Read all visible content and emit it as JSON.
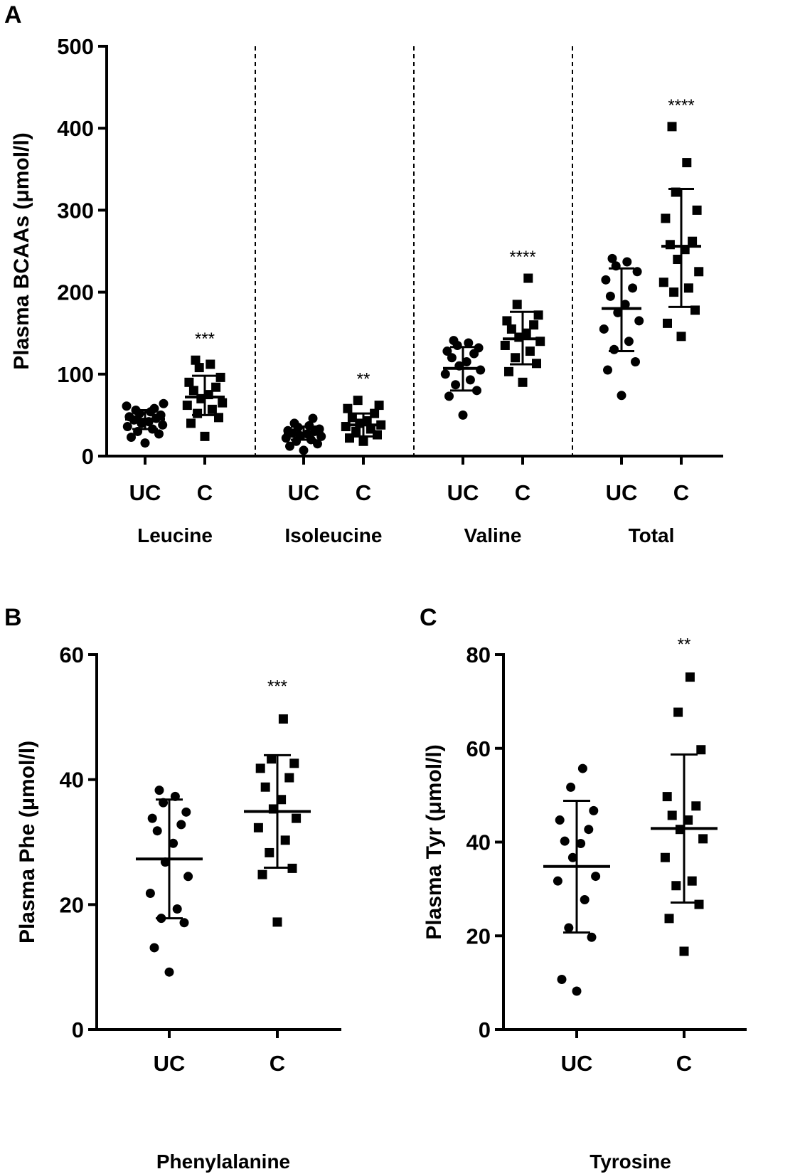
{
  "chart_data": [
    {
      "panel": "A",
      "type": "scatter",
      "ylabel": "Plasma BCAAs (μmol/l)",
      "ylim": [
        0,
        500
      ],
      "yticks": [
        0,
        100,
        200,
        300,
        400,
        500
      ],
      "groups": [
        {
          "name": "Leucine",
          "significance": "***",
          "series": [
            {
              "name": "UC",
              "marker": "circle",
              "mean": 45,
              "sd_low": 33,
              "sd_high": 56,
              "values": [
                16,
                23,
                27,
                30,
                33,
                36,
                38,
                40,
                42,
                44,
                46,
                48,
                50,
                52,
                54,
                56,
                58,
                61,
                64
              ]
            },
            {
              "name": "C",
              "marker": "square",
              "mean": 72,
              "sd_low": 50,
              "sd_high": 98,
              "values": [
                24,
                40,
                47,
                52,
                57,
                62,
                65,
                70,
                75,
                80,
                84,
                90,
                96,
                108,
                112,
                117
              ]
            }
          ]
        },
        {
          "name": "Isoleucine",
          "significance": "**",
          "series": [
            {
              "name": "UC",
              "marker": "circle",
              "mean": 28,
              "sd_low": 20,
              "sd_high": 36,
              "values": [
                7,
                12,
                15,
                18,
                20,
                22,
                24,
                25,
                27,
                28,
                30,
                31,
                33,
                35,
                37,
                40,
                46
              ]
            },
            {
              "name": "C",
              "marker": "square",
              "mean": 38,
              "sd_low": 24,
              "sd_high": 52,
              "values": [
                18,
                22,
                26,
                30,
                33,
                36,
                38,
                40,
                43,
                47,
                52,
                58,
                62,
                68
              ]
            }
          ]
        },
        {
          "name": "Valine",
          "significance": "****",
          "series": [
            {
              "name": "UC",
              "marker": "circle",
              "mean": 107,
              "sd_low": 80,
              "sd_high": 133,
              "values": [
                50,
                73,
                80,
                87,
                93,
                100,
                105,
                110,
                115,
                120,
                125,
                128,
                132,
                135,
                138,
                141
              ]
            },
            {
              "name": "C",
              "marker": "square",
              "mean": 143,
              "sd_low": 112,
              "sd_high": 176,
              "values": [
                90,
                103,
                113,
                120,
                128,
                135,
                140,
                145,
                150,
                155,
                160,
                165,
                172,
                185,
                217
              ]
            }
          ]
        },
        {
          "name": "Total",
          "significance": "****",
          "series": [
            {
              "name": "UC",
              "marker": "circle",
              "mean": 180,
              "sd_low": 128,
              "sd_high": 229,
              "values": [
                74,
                105,
                115,
                130,
                140,
                155,
                165,
                175,
                185,
                195,
                205,
                215,
                225,
                232,
                237,
                241
              ]
            },
            {
              "name": "C",
              "marker": "square",
              "mean": 256,
              "sd_low": 182,
              "sd_high": 326,
              "values": [
                146,
                162,
                178,
                200,
                205,
                212,
                225,
                240,
                252,
                258,
                262,
                290,
                300,
                322,
                358,
                402
              ]
            }
          ]
        }
      ]
    },
    {
      "panel": "B",
      "type": "scatter",
      "title": "Phenylalanine",
      "ylabel": "Plasma Phe (μmol/l)",
      "ylim": [
        0,
        60
      ],
      "yticks": [
        0,
        20,
        40,
        60
      ],
      "significance": "***",
      "series": [
        {
          "name": "UC",
          "marker": "circle",
          "mean": 27.3,
          "sd_low": 17.8,
          "sd_high": 36.8,
          "values": [
            9.2,
            13.1,
            17.1,
            17.8,
            19.3,
            21.8,
            24.5,
            26.8,
            29.8,
            31.8,
            32.8,
            33.8,
            34.8,
            36.3,
            37.3,
            38.3
          ]
        },
        {
          "name": "C",
          "marker": "square",
          "mean": 34.9,
          "sd_low": 25.9,
          "sd_high": 43.9,
          "values": [
            17.2,
            24.8,
            25.8,
            28.3,
            30.3,
            32.3,
            33.8,
            35.3,
            36.8,
            38.8,
            40.3,
            41.8,
            42.6,
            43.3,
            49.7
          ]
        }
      ]
    },
    {
      "panel": "C",
      "type": "scatter",
      "title": "Tyrosine",
      "ylabel": "Plasma Tyr (μmol/l)",
      "ylim": [
        0,
        80
      ],
      "yticks": [
        0,
        20,
        40,
        60,
        80
      ],
      "significance": "**",
      "series": [
        {
          "name": "UC",
          "marker": "circle",
          "mean": 34.8,
          "sd_low": 20.7,
          "sd_high": 48.8,
          "values": [
            8.2,
            10.7,
            19.7,
            21.7,
            27.7,
            31.7,
            32.7,
            36.7,
            39.7,
            40.2,
            42.7,
            44.7,
            46.7,
            51.7,
            55.7
          ]
        },
        {
          "name": "C",
          "marker": "square",
          "mean": 42.9,
          "sd_low": 27.1,
          "sd_high": 58.7,
          "values": [
            16.7,
            23.7,
            26.7,
            30.7,
            31.7,
            36.7,
            40.7,
            42.7,
            44.7,
            45.7,
            47.7,
            49.7,
            59.7,
            67.7,
            75.2
          ]
        }
      ]
    }
  ]
}
